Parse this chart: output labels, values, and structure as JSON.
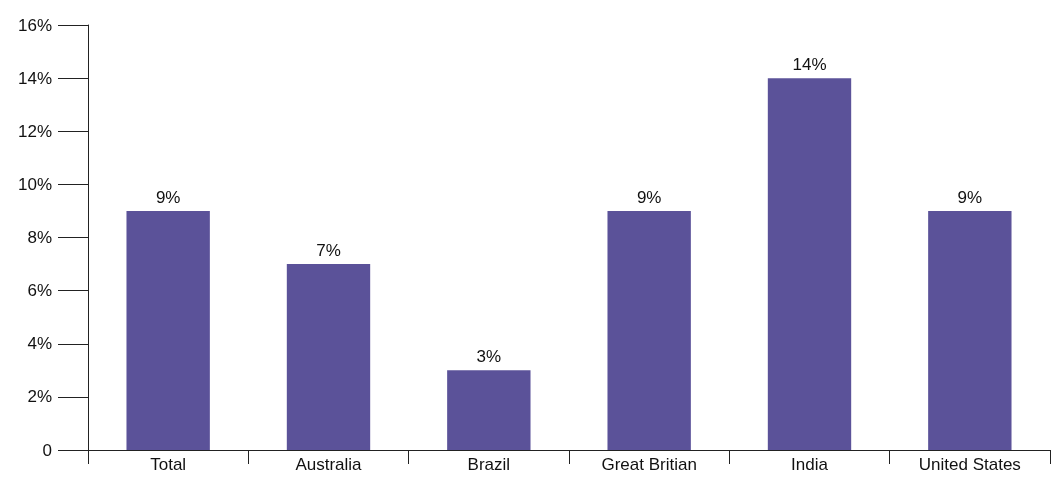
{
  "chart_data": {
    "type": "bar",
    "categories": [
      "Total",
      "Australia",
      "Brazil",
      "Great Britian",
      "India",
      "United States"
    ],
    "values": [
      9,
      7,
      3,
      9,
      14,
      9
    ],
    "value_labels": [
      "9%",
      "7%",
      "3%",
      "9%",
      "14%",
      "9%"
    ],
    "color": "#5b5299",
    "ylim": [
      0,
      16
    ],
    "yticks": [
      0,
      {
        "value": 2,
        "label": "2%"
      },
      {
        "value": 4,
        "label": "4%"
      },
      {
        "value": 6,
        "label": "6%"
      },
      {
        "value": 8,
        "label": "8%"
      },
      {
        "value": 10,
        "label": "10%"
      },
      {
        "value": 12,
        "label": "12%"
      },
      {
        "value": 14,
        "label": "14%"
      },
      {
        "value": 16,
        "label": "16%"
      }
    ],
    "grid": false
  }
}
